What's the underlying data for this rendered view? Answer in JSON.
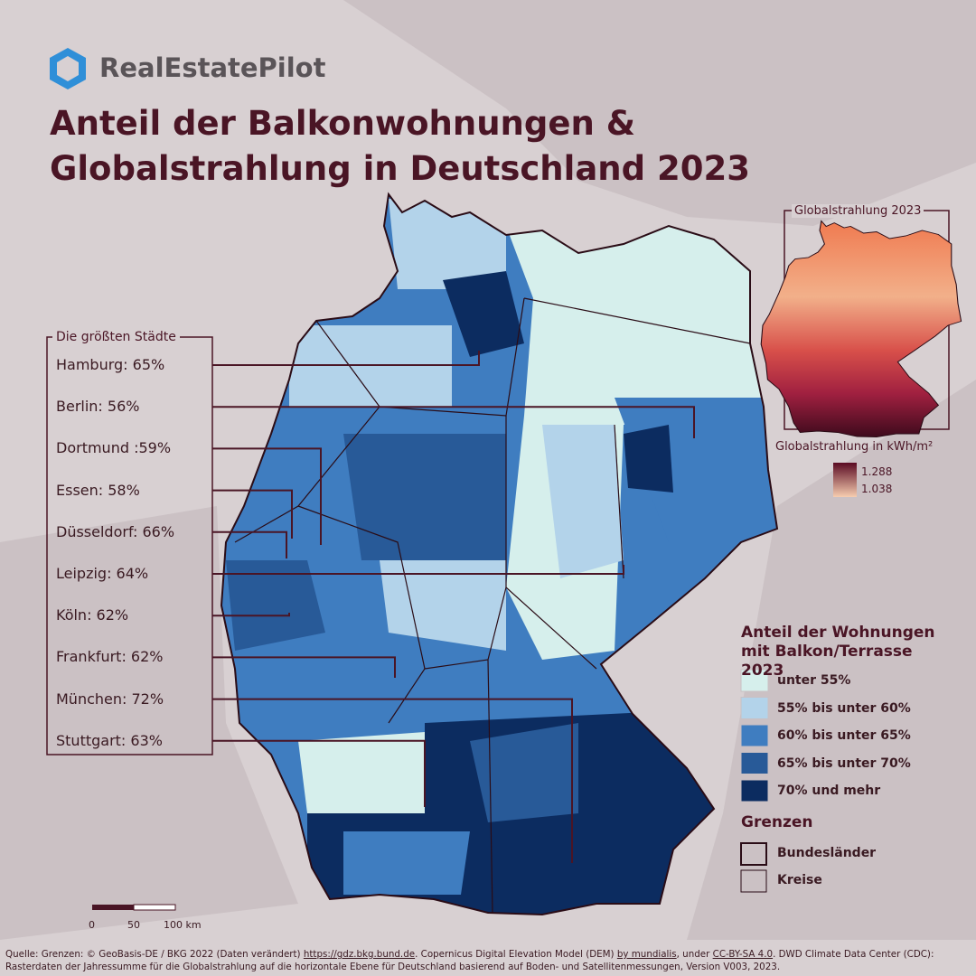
{
  "logo": "RealEstatePilot",
  "title": "Anteil der Balkonwohnungen & Globalstrahlung in Deutschland 2023",
  "cities": {
    "title": "Die größten Städte",
    "items": [
      "Hamburg: 65%",
      "Berlin: 56%",
      "Dortmund :59%",
      "Essen: 58%",
      "Düsseldorf: 66%",
      "Leipzig: 64%",
      "Köln: 62%",
      "Frankfurt: 62%",
      "München: 72%",
      "Stuttgart: 63%"
    ]
  },
  "inset": {
    "title": "Globalstrahlung 2023",
    "unit_label": "Globalstrahlung in kWh/m²",
    "max_label": "1.288",
    "min_label": "1.038"
  },
  "legend": {
    "title": "Anteil der Wohnungen mit Balkon/Terrasse 2023",
    "items": [
      {
        "label": "unter 55%",
        "color": "#d6efec"
      },
      {
        "label": "55% bis unter 60%",
        "color": "#b3d3ea"
      },
      {
        "label": "60% bis unter 65%",
        "color": "#3f7dc0"
      },
      {
        "label": "65% bis unter 70%",
        "color": "#285a98"
      },
      {
        "label": "70% und mehr",
        "color": "#0c2c60"
      }
    ],
    "borders_title": "Grenzen",
    "borders": [
      "Bundesländer",
      "Kreise"
    ]
  },
  "scale": [
    "0",
    "50",
    "100 km"
  ],
  "source": [
    {
      "text": "Quelle: Grenzen: © GeoBasis-DE / BKG 2022 (Daten verändert) "
    },
    {
      "text": "https://gdz.bkg.bund.de",
      "link": true
    },
    {
      "text": ". Copernicus Digital Elevation Model (DEM) "
    },
    {
      "text": "by mundialis",
      "link": true
    },
    {
      "text": ", under "
    },
    {
      "text": "CC-BY-SA 4.0",
      "link": true
    },
    {
      "text": ". DWD Climate Data Center (CDC): Rasterdaten der Jahressumme für die Globalstrahlung auf die horizontale Ebene für Deutschland basierend auf Boden- und Satellitenmessungen, Version V003, 2023."
    }
  ]
}
